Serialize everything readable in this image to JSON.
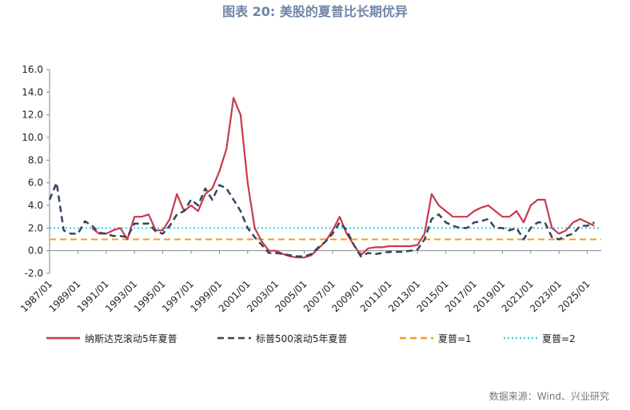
{
  "chart_data": {
    "type": "line",
    "title": "图表 20:     美股的夏普比长期优异",
    "source": "数据来源：Wind、兴业研究",
    "x": [
      "1987/01",
      "1987/07",
      "1988/01",
      "1988/07",
      "1989/01",
      "1989/07",
      "1990/01",
      "1990/07",
      "1991/01",
      "1991/07",
      "1992/01",
      "1992/07",
      "1993/01",
      "1993/07",
      "1994/01",
      "1994/07",
      "1995/01",
      "1995/07",
      "1996/01",
      "1996/07",
      "1997/01",
      "1997/07",
      "1998/01",
      "1998/07",
      "1999/01",
      "1999/07",
      "2000/01",
      "2000/07",
      "2001/01",
      "2001/07",
      "2002/01",
      "2002/07",
      "2003/01",
      "2003/07",
      "2004/01",
      "2004/07",
      "2005/01",
      "2005/07",
      "2006/01",
      "2006/07",
      "2007/01",
      "2007/07",
      "2008/01",
      "2008/07",
      "2009/01",
      "2009/07",
      "2010/01",
      "2010/07",
      "2011/01",
      "2011/07",
      "2012/01",
      "2012/07",
      "2013/01",
      "2013/07",
      "2014/01",
      "2014/07",
      "2015/01",
      "2015/07",
      "2016/01",
      "2016/07",
      "2017/01",
      "2017/07",
      "2018/01",
      "2018/07",
      "2019/01",
      "2019/07",
      "2020/01",
      "2020/07",
      "2021/01",
      "2021/07",
      "2022/01",
      "2022/07",
      "2023/01",
      "2023/07",
      "2024/01",
      "2024/07",
      "2025/01",
      "2025/07"
    ],
    "series": [
      {
        "name": "纳斯达克滚动5年夏普",
        "color": "#c83a4e",
        "dash": "solid",
        "values": [
          null,
          null,
          null,
          null,
          null,
          null,
          2.0,
          1.5,
          1.5,
          1.8,
          2.0,
          1.0,
          3.0,
          3.0,
          3.2,
          1.8,
          1.8,
          2.8,
          5.0,
          3.5,
          4.0,
          3.5,
          5.0,
          5.5,
          7.0,
          9.0,
          13.5,
          12.0,
          6.0,
          2.0,
          0.8,
          0.0,
          0.0,
          -0.3,
          -0.5,
          -0.6,
          -0.6,
          -0.4,
          0.2,
          0.8,
          1.8,
          3.0,
          1.5,
          0.5,
          -0.4,
          0.2,
          0.3,
          0.3,
          0.4,
          0.4,
          0.4,
          0.4,
          0.5,
          1.5,
          5.0,
          4.0,
          3.5,
          3.0,
          3.0,
          3.0,
          3.5,
          3.8,
          4.0,
          3.5,
          3.0,
          3.0,
          3.5,
          2.5,
          4.0,
          4.5,
          4.5,
          2.0,
          1.5,
          1.8,
          2.5,
          2.8,
          2.5,
          2.2
        ]
      },
      {
        "name": "标普500滚动5年夏普",
        "color": "#34465e",
        "dash": "dashed",
        "values": [
          4.5,
          6.0,
          1.8,
          1.5,
          1.5,
          2.6,
          2.2,
          1.6,
          1.5,
          1.3,
          1.3,
          1.2,
          2.4,
          2.4,
          2.4,
          1.7,
          1.5,
          2.2,
          3.2,
          3.5,
          4.5,
          4.0,
          5.5,
          4.5,
          5.8,
          5.5,
          4.5,
          3.5,
          2.0,
          1.2,
          0.5,
          -0.2,
          -0.2,
          -0.3,
          -0.4,
          -0.5,
          -0.5,
          -0.3,
          0.3,
          0.8,
          1.5,
          2.5,
          1.8,
          0.5,
          -0.5,
          -0.2,
          -0.3,
          -0.2,
          -0.1,
          -0.1,
          -0.1,
          0.0,
          0.1,
          1.0,
          2.8,
          3.2,
          2.5,
          2.2,
          2.0,
          2.0,
          2.5,
          2.6,
          2.8,
          2.0,
          2.0,
          1.8,
          2.0,
          1.0,
          2.0,
          2.5,
          2.5,
          1.2,
          1.0,
          1.3,
          1.5,
          2.2,
          2.2,
          2.5
        ]
      }
    ],
    "reference_lines": [
      {
        "name": "夏普=1",
        "color": "#f0a020",
        "dash": "dashed",
        "value": 1
      },
      {
        "name": "夏普=2",
        "color": "#40d0d8",
        "dash": "dotted",
        "value": 2
      }
    ],
    "ylim": [
      -2,
      16
    ],
    "yticks": [
      {
        "value": -2,
        "label": "-2.0"
      },
      {
        "value": 0,
        "label": "0.0"
      },
      {
        "value": 2,
        "label": "2.0"
      },
      {
        "value": 4,
        "label": "4.0"
      },
      {
        "value": 6,
        "label": "6.0"
      },
      {
        "value": 8,
        "label": "8.0"
      },
      {
        "value": 10,
        "label": "10.0"
      },
      {
        "value": 12,
        "label": "12.0"
      },
      {
        "value": 14,
        "label": "14.0"
      },
      {
        "value": 16,
        "label": "16.0"
      }
    ],
    "xticks": [
      "1987/01",
      "1989/01",
      "1991/01",
      "1993/01",
      "1995/01",
      "1997/01",
      "1999/01",
      "2001/01",
      "2003/01",
      "2005/01",
      "2007/01",
      "2009/01",
      "2011/01",
      "2013/01",
      "2015/01",
      "2017/01",
      "2019/01",
      "2021/01",
      "2023/01",
      "2025/01"
    ]
  }
}
